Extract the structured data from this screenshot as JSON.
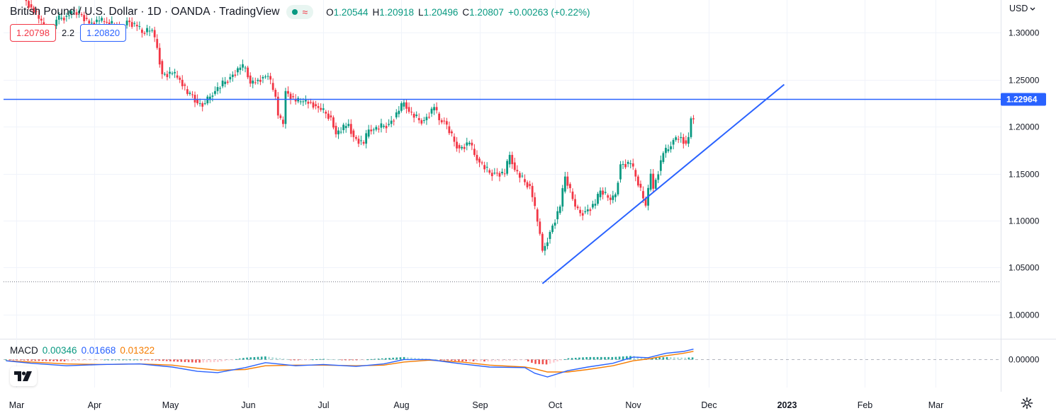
{
  "header": {
    "title": "British Pound / U.S. Dollar · 1D · OANDA · TradingView",
    "open_label": "O",
    "open": "1.20544",
    "high_label": "H",
    "high": "1.20918",
    "low_label": "L",
    "low": "1.20496",
    "close_label": "C",
    "close": "1.20807",
    "change": "+0.00263 (+0.22%)",
    "wave_glyph": "≈"
  },
  "quote": {
    "bid": "1.20798",
    "spread": "2.2",
    "ask": "1.20820"
  },
  "currency": "USD",
  "macd_legend": {
    "label": "MACD",
    "hist": "0.00346",
    "macd": "0.01668",
    "signal": "0.01322"
  },
  "colors": {
    "up": "#089981",
    "down": "#f23645",
    "blue": "#2962ff",
    "orange": "#f57c00",
    "hist_up": "#26a69a",
    "hist_up_light": "#b2dfdb",
    "hist_down": "#ef5350",
    "hist_down_light": "#ffcdd2"
  },
  "chart_data": {
    "type": "candlestick",
    "symbol": "GBPUSD",
    "timeframe": "1D",
    "y_ticks": [
      1.0,
      1.05,
      1.1,
      1.15,
      1.2,
      1.25,
      1.3
    ],
    "y_tick_labels": [
      "1.00000",
      "1.05000",
      "1.10000",
      "1.15000",
      "1.20000",
      "1.25000",
      "1.30000"
    ],
    "ylim": [
      0.975,
      1.335
    ],
    "x_labels": [
      "Mar",
      "Apr",
      "May",
      "Jun",
      "Jul",
      "Aug",
      "Sep",
      "Oct",
      "Nov",
      "Dec",
      "2023",
      "Feb",
      "Mar"
    ],
    "x_label_dates": [
      "2022-03-01",
      "2022-04-01",
      "2022-05-01",
      "2022-06-01",
      "2022-07-01",
      "2022-08-01",
      "2022-09-01",
      "2022-10-01",
      "2022-11-01",
      "2022-12-01",
      "2023-01-01",
      "2023-02-01",
      "2023-03-01"
    ],
    "xlim": [
      "2022-02-24",
      "2023-03-27"
    ],
    "horizontal_line": {
      "value": 1.22964,
      "label": "1.22964"
    },
    "dotted_line": {
      "value": 1.035
    },
    "trendline": {
      "start": [
        "2022-09-26",
        1.033
      ],
      "end": [
        "2022-12-31",
        1.245
      ]
    },
    "closes": [
      [
        "2022-02-25",
        1.34
      ],
      [
        "2022-02-28",
        1.341
      ],
      [
        "2022-03-04",
        1.327
      ],
      [
        "2022-03-08",
        1.315
      ],
      [
        "2022-03-11",
        1.304
      ],
      [
        "2022-03-14",
        1.301
      ],
      [
        "2022-03-16",
        1.314
      ],
      [
        "2022-03-18",
        1.318
      ],
      [
        "2022-03-22",
        1.323
      ],
      [
        "2022-03-24",
        1.319
      ],
      [
        "2022-03-28",
        1.31
      ],
      [
        "2022-03-31",
        1.313
      ],
      [
        "2022-04-04",
        1.311
      ],
      [
        "2022-04-07",
        1.307
      ],
      [
        "2022-04-11",
        1.303
      ],
      [
        "2022-04-13",
        1.313
      ],
      [
        "2022-04-15",
        1.307
      ],
      [
        "2022-04-19",
        1.3
      ],
      [
        "2022-04-21",
        1.303
      ],
      [
        "2022-04-25",
        1.284
      ],
      [
        "2022-04-27",
        1.256
      ],
      [
        "2022-04-29",
        1.257
      ],
      [
        "2022-05-03",
        1.25
      ],
      [
        "2022-05-06",
        1.235
      ],
      [
        "2022-05-09",
        1.234
      ],
      [
        "2022-05-11",
        1.225
      ],
      [
        "2022-05-13",
        1.225
      ],
      [
        "2022-05-16",
        1.232
      ],
      [
        "2022-05-18",
        1.238
      ],
      [
        "2022-05-20",
        1.248
      ],
      [
        "2022-05-24",
        1.253
      ],
      [
        "2022-05-26",
        1.263
      ],
      [
        "2022-05-30",
        1.263
      ],
      [
        "2022-06-01",
        1.246
      ],
      [
        "2022-06-03",
        1.25
      ],
      [
        "2022-06-06",
        1.253
      ],
      [
        "2022-06-08",
        1.254
      ],
      [
        "2022-06-10",
        1.232
      ],
      [
        "2022-06-13",
        1.212
      ],
      [
        "2022-06-14",
        1.203
      ],
      [
        "2022-06-16",
        1.238
      ],
      [
        "2022-06-17",
        1.227
      ],
      [
        "2022-06-21",
        1.227
      ],
      [
        "2022-06-23",
        1.227
      ],
      [
        "2022-06-24",
        1.226
      ],
      [
        "2022-06-27",
        1.222
      ],
      [
        "2022-06-29",
        1.218
      ],
      [
        "2022-07-01",
        1.21
      ],
      [
        "2022-07-05",
        1.192
      ],
      [
        "2022-07-07",
        1.203
      ],
      [
        "2022-07-12",
        1.189
      ],
      [
        "2022-07-14",
        1.182
      ],
      [
        "2022-07-18",
        1.197
      ],
      [
        "2022-07-20",
        1.197
      ],
      [
        "2022-07-22",
        1.201
      ],
      [
        "2022-07-26",
        1.203
      ],
      [
        "2022-07-28",
        1.217
      ],
      [
        "2022-08-01",
        1.226
      ],
      [
        "2022-08-03",
        1.216
      ],
      [
        "2022-08-05",
        1.207
      ],
      [
        "2022-08-09",
        1.207
      ],
      [
        "2022-08-11",
        1.221
      ],
      [
        "2022-08-15",
        1.207
      ],
      [
        "2022-08-17",
        1.206
      ],
      [
        "2022-08-19",
        1.184
      ],
      [
        "2022-08-23",
        1.177
      ],
      [
        "2022-08-25",
        1.183
      ],
      [
        "2022-08-29",
        1.17
      ],
      [
        "2022-08-31",
        1.162
      ],
      [
        "2022-09-02",
        1.151
      ],
      [
        "2022-09-06",
        1.151
      ],
      [
        "2022-09-08",
        1.15
      ],
      [
        "2022-09-12",
        1.17
      ],
      [
        "2022-09-14",
        1.154
      ],
      [
        "2022-09-16",
        1.141
      ],
      [
        "2022-09-20",
        1.137
      ],
      [
        "2022-09-22",
        1.125
      ],
      [
        "2022-09-23",
        1.086
      ],
      [
        "2022-09-26",
        1.068
      ],
      [
        "2022-09-27",
        1.073
      ],
      [
        "2022-09-28",
        1.088
      ],
      [
        "2022-09-30",
        1.115
      ],
      [
        "2022-10-04",
        1.147
      ],
      [
        "2022-10-06",
        1.115
      ],
      [
        "2022-10-10",
        1.108
      ],
      [
        "2022-10-12",
        1.11
      ],
      [
        "2022-10-14",
        1.118
      ],
      [
        "2022-10-18",
        1.132
      ],
      [
        "2022-10-20",
        1.122
      ],
      [
        "2022-10-24",
        1.128
      ],
      [
        "2022-10-26",
        1.16
      ],
      [
        "2022-10-28",
        1.161
      ],
      [
        "2022-11-01",
        1.147
      ],
      [
        "2022-11-03",
        1.116
      ],
      [
        "2022-11-07",
        1.15
      ],
      [
        "2022-11-09",
        1.134
      ],
      [
        "2022-11-10",
        1.172
      ],
      [
        "2022-11-14",
        1.176
      ],
      [
        "2022-11-16",
        1.186
      ],
      [
        "2022-11-18",
        1.189
      ],
      [
        "2022-11-21",
        1.182
      ],
      [
        "2022-11-23",
        1.189
      ],
      [
        "2022-11-24",
        1.209
      ],
      [
        "2022-11-25",
        1.208
      ]
    ],
    "macd": {
      "label": "MACD",
      "ylim": [
        -0.045,
        0.03
      ],
      "zero_label": "0.00000",
      "hist_last": 0.00346,
      "macd_last": 0.01668,
      "signal_last": 0.01322,
      "macd_line": [
        [
          "2022-02-25",
          -0.002
        ],
        [
          "2022-03-07",
          -0.006
        ],
        [
          "2022-03-21",
          -0.01
        ],
        [
          "2022-04-04",
          -0.008
        ],
        [
          "2022-04-19",
          -0.007
        ],
        [
          "2022-05-02",
          -0.012
        ],
        [
          "2022-05-12",
          -0.019
        ],
        [
          "2022-05-20",
          -0.021
        ],
        [
          "2022-05-31",
          -0.013
        ],
        [
          "2022-06-08",
          -0.005
        ],
        [
          "2022-06-20",
          -0.01
        ],
        [
          "2022-07-01",
          -0.008
        ],
        [
          "2022-07-14",
          -0.011
        ],
        [
          "2022-07-25",
          -0.007
        ],
        [
          "2022-08-02",
          0.0
        ],
        [
          "2022-08-12",
          0.0
        ],
        [
          "2022-08-25",
          -0.007
        ],
        [
          "2022-09-05",
          -0.012
        ],
        [
          "2022-09-19",
          -0.013
        ],
        [
          "2022-09-23",
          -0.022
        ],
        [
          "2022-09-28",
          -0.028
        ],
        [
          "2022-10-06",
          -0.018
        ],
        [
          "2022-10-14",
          -0.012
        ],
        [
          "2022-10-24",
          -0.006
        ],
        [
          "2022-11-01",
          0.004
        ],
        [
          "2022-11-07",
          0.003
        ],
        [
          "2022-11-14",
          0.01
        ],
        [
          "2022-11-21",
          0.013
        ],
        [
          "2022-11-25",
          0.01668
        ]
      ],
      "signal_line": [
        [
          "2022-02-25",
          -0.002
        ],
        [
          "2022-03-07",
          -0.004
        ],
        [
          "2022-03-21",
          -0.007
        ],
        [
          "2022-04-04",
          -0.008
        ],
        [
          "2022-04-19",
          -0.007
        ],
        [
          "2022-05-02",
          -0.009
        ],
        [
          "2022-05-12",
          -0.014
        ],
        [
          "2022-05-20",
          -0.017
        ],
        [
          "2022-05-31",
          -0.016
        ],
        [
          "2022-06-08",
          -0.01
        ],
        [
          "2022-06-20",
          -0.009
        ],
        [
          "2022-07-01",
          -0.009
        ],
        [
          "2022-07-14",
          -0.01
        ],
        [
          "2022-07-25",
          -0.009
        ],
        [
          "2022-08-02",
          -0.004
        ],
        [
          "2022-08-12",
          -0.001
        ],
        [
          "2022-08-25",
          -0.004
        ],
        [
          "2022-09-05",
          -0.009
        ],
        [
          "2022-09-19",
          -0.012
        ],
        [
          "2022-09-23",
          -0.015
        ],
        [
          "2022-09-28",
          -0.02
        ],
        [
          "2022-10-06",
          -0.02
        ],
        [
          "2022-10-14",
          -0.016
        ],
        [
          "2022-10-24",
          -0.01
        ],
        [
          "2022-11-01",
          -0.002
        ],
        [
          "2022-11-07",
          0.001
        ],
        [
          "2022-11-14",
          0.006
        ],
        [
          "2022-11-21",
          0.01
        ],
        [
          "2022-11-25",
          0.01322
        ]
      ]
    }
  }
}
